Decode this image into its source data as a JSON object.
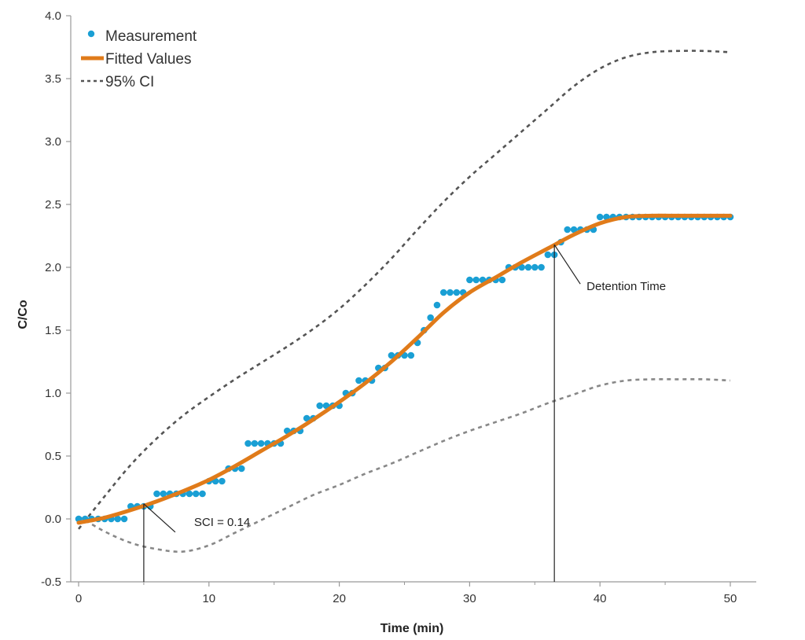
{
  "chart_data": {
    "type": "scatter",
    "title": "",
    "xlabel": "Time (min)",
    "ylabel": "C/Co",
    "xlim": [
      0,
      52
    ],
    "ylim": [
      -0.5,
      4.0
    ],
    "x_ticks": [
      0,
      10,
      20,
      30,
      40,
      50
    ],
    "x_tick_labels": [
      "0",
      "10",
      "20",
      "30",
      "40",
      "50"
    ],
    "x_minor_ticks": [
      5,
      15,
      25,
      35,
      45
    ],
    "y_ticks": [
      -0.5,
      0.0,
      0.5,
      1.0,
      1.5,
      2.0,
      2.5,
      3.0,
      3.5,
      4.0
    ],
    "y_tick_labels": [
      "-0.5",
      "0.0",
      "0.5",
      "1.0",
      "1.5",
      "2.0",
      "2.5",
      "3.0",
      "3.5",
      "4.0"
    ],
    "grid": false,
    "legend": {
      "position": "top-left",
      "entries": [
        {
          "label": "Measurement",
          "kind": "marker",
          "color": "#1a9fd4"
        },
        {
          "label": "Fitted Values",
          "kind": "line",
          "color": "#e07b1a"
        },
        {
          "label": "95% CI",
          "kind": "dashed",
          "color": "#555555"
        }
      ]
    },
    "series": [
      {
        "name": "Measurement",
        "kind": "scatter",
        "color": "#1a9fd4",
        "x": [
          0,
          0.5,
          1,
          1.5,
          2,
          2.5,
          3,
          3.5,
          4,
          4.5,
          5,
          5.5,
          6,
          6.5,
          7,
          7.5,
          8,
          8.5,
          9,
          9.5,
          10,
          10.5,
          11,
          11.5,
          12,
          12.5,
          13,
          13.5,
          14,
          14.5,
          15,
          15.5,
          16,
          16.5,
          17,
          17.5,
          18,
          18.5,
          19,
          19.5,
          20,
          20.5,
          21,
          21.5,
          22,
          22.5,
          23,
          23.5,
          24,
          24.5,
          25,
          25.5,
          26,
          26.5,
          27,
          27.5,
          28,
          28.5,
          29,
          29.5,
          30,
          30.5,
          31,
          31.5,
          32,
          32.5,
          33,
          33.5,
          34,
          34.5,
          35,
          35.5,
          36,
          36.5,
          37,
          37.5,
          38,
          38.5,
          39,
          39.5,
          40,
          40.5,
          41,
          41.5,
          42,
          42.5,
          43,
          43.5,
          44,
          44.5,
          45,
          45.5,
          46,
          46.5,
          47,
          47.5,
          48,
          48.5,
          49,
          49.5,
          50
        ],
        "y": [
          0,
          0,
          0,
          0,
          0,
          0,
          0,
          0,
          0.1,
          0.1,
          0.1,
          0.1,
          0.2,
          0.2,
          0.2,
          0.2,
          0.2,
          0.2,
          0.2,
          0.2,
          0.3,
          0.3,
          0.3,
          0.4,
          0.4,
          0.4,
          0.6,
          0.6,
          0.6,
          0.6,
          0.6,
          0.6,
          0.7,
          0.7,
          0.7,
          0.8,
          0.8,
          0.9,
          0.9,
          0.9,
          0.9,
          1.0,
          1.0,
          1.1,
          1.1,
          1.1,
          1.2,
          1.2,
          1.3,
          1.3,
          1.3,
          1.3,
          1.4,
          1.5,
          1.6,
          1.7,
          1.8,
          1.8,
          1.8,
          1.8,
          1.9,
          1.9,
          1.9,
          1.9,
          1.9,
          1.9,
          2.0,
          2.0,
          2.0,
          2.0,
          2.0,
          2.0,
          2.1,
          2.1,
          2.2,
          2.3,
          2.3,
          2.3,
          2.3,
          2.3,
          2.4,
          2.4,
          2.4,
          2.4,
          2.4,
          2.4,
          2.4,
          2.4,
          2.4,
          2.4,
          2.4,
          2.4,
          2.4,
          2.4,
          2.4,
          2.4,
          2.4,
          2.4,
          2.4,
          2.4,
          2.4
        ]
      },
      {
        "name": "Fitted Values",
        "kind": "line",
        "color": "#e07b1a",
        "x": [
          0,
          2,
          4,
          6,
          8,
          10,
          12,
          14,
          16,
          18,
          20,
          22,
          24,
          26,
          28,
          30,
          32,
          34,
          36,
          38,
          40,
          42,
          44,
          46,
          48,
          50
        ],
        "y": [
          -0.03,
          0.01,
          0.07,
          0.14,
          0.22,
          0.31,
          0.42,
          0.54,
          0.66,
          0.79,
          0.93,
          1.08,
          1.25,
          1.44,
          1.64,
          1.8,
          1.92,
          2.04,
          2.15,
          2.26,
          2.35,
          2.4,
          2.41,
          2.41,
          2.41,
          2.41
        ]
      },
      {
        "name": "95% CI Upper",
        "kind": "dashed",
        "color": "#555555",
        "x": [
          0,
          2,
          4,
          6,
          8,
          10,
          12,
          14,
          16,
          18,
          20,
          22,
          24,
          26,
          28,
          30,
          32,
          34,
          36,
          38,
          40,
          42,
          44,
          46,
          48,
          50
        ],
        "y": [
          -0.08,
          0.18,
          0.43,
          0.64,
          0.82,
          0.97,
          1.11,
          1.24,
          1.37,
          1.51,
          1.67,
          1.86,
          2.07,
          2.3,
          2.52,
          2.72,
          2.9,
          3.08,
          3.26,
          3.44,
          3.58,
          3.67,
          3.71,
          3.72,
          3.72,
          3.71
        ]
      },
      {
        "name": "95% CI Lower",
        "kind": "dashed",
        "color": "#888888",
        "x": [
          0,
          2,
          4,
          6,
          8,
          10,
          12,
          14,
          16,
          18,
          20,
          22,
          24,
          26,
          28,
          30,
          32,
          34,
          36,
          38,
          40,
          42,
          44,
          46,
          48,
          50
        ],
        "y": [
          0.02,
          -0.1,
          -0.19,
          -0.24,
          -0.26,
          -0.21,
          -0.11,
          -0.01,
          0.09,
          0.19,
          0.27,
          0.36,
          0.44,
          0.53,
          0.62,
          0.7,
          0.77,
          0.84,
          0.92,
          0.99,
          1.06,
          1.1,
          1.11,
          1.11,
          1.11,
          1.1
        ]
      }
    ],
    "annotations": [
      {
        "label": "SCI = 0.14",
        "x": 5.0,
        "y": 0.12
      },
      {
        "label": "Detention Time",
        "x": 36.5,
        "y": 2.18
      }
    ]
  }
}
